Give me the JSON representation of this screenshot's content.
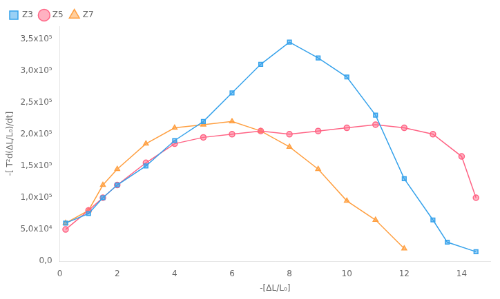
{
  "chart_data": {
    "type": "line",
    "xlabel": "-[ΔL/L₀]",
    "ylabel": "-[ T²d(ΔL/L₀)/dt]",
    "xlim": [
      0,
      15
    ],
    "ylim": [
      0,
      370000
    ],
    "xticks": [
      0,
      2,
      4,
      6,
      8,
      10,
      12,
      14
    ],
    "yticks": [
      {
        "value": 0,
        "label": "0,0"
      },
      {
        "value": 50000,
        "label": "5,0x10⁴"
      },
      {
        "value": 100000,
        "label": "1,0x10⁵"
      },
      {
        "value": 150000,
        "label": "1,5x10⁵"
      },
      {
        "value": 200000,
        "label": "2,0x10⁵"
      },
      {
        "value": 250000,
        "label": "2,5x10⁵"
      },
      {
        "value": 300000,
        "label": "3,0x10⁵"
      },
      {
        "value": 350000,
        "label": "3,5x10⁵"
      }
    ],
    "grid": false,
    "legend": "upper left",
    "series": [
      {
        "name": "Z3",
        "marker": "square",
        "x": [
          0.2,
          1.0,
          1.5,
          2.0,
          3.0,
          4.0,
          5.0,
          6.0,
          7.0,
          8.0,
          9.0,
          10.0,
          11.0,
          12.0,
          13.0,
          13.5,
          14.5
        ],
        "values": [
          60000,
          75000,
          100000,
          120000,
          150000,
          190000,
          220000,
          265000,
          310000,
          345000,
          320000,
          290000,
          230000,
          130000,
          65000,
          30000,
          15000
        ]
      },
      {
        "name": "Z5",
        "marker": "circle",
        "x": [
          0.2,
          1.0,
          1.5,
          2.0,
          3.0,
          4.0,
          5.0,
          6.0,
          7.0,
          8.0,
          9.0,
          10.0,
          11.0,
          12.0,
          13.0,
          14.0,
          14.5
        ],
        "values": [
          50000,
          80000,
          100000,
          120000,
          155000,
          185000,
          195000,
          200000,
          205000,
          200000,
          205000,
          210000,
          215000,
          210000,
          200000,
          165000,
          100000
        ]
      },
      {
        "name": "Z7",
        "marker": "triangle",
        "x": [
          0.2,
          1.0,
          1.5,
          2.0,
          3.0,
          4.0,
          5.0,
          6.0,
          7.0,
          8.0,
          9.0,
          10.0,
          11.0,
          12.0
        ],
        "values": [
          60000,
          80000,
          120000,
          145000,
          185000,
          210000,
          215000,
          220000,
          205000,
          180000,
          145000,
          95000,
          65000,
          20000
        ]
      }
    ]
  }
}
